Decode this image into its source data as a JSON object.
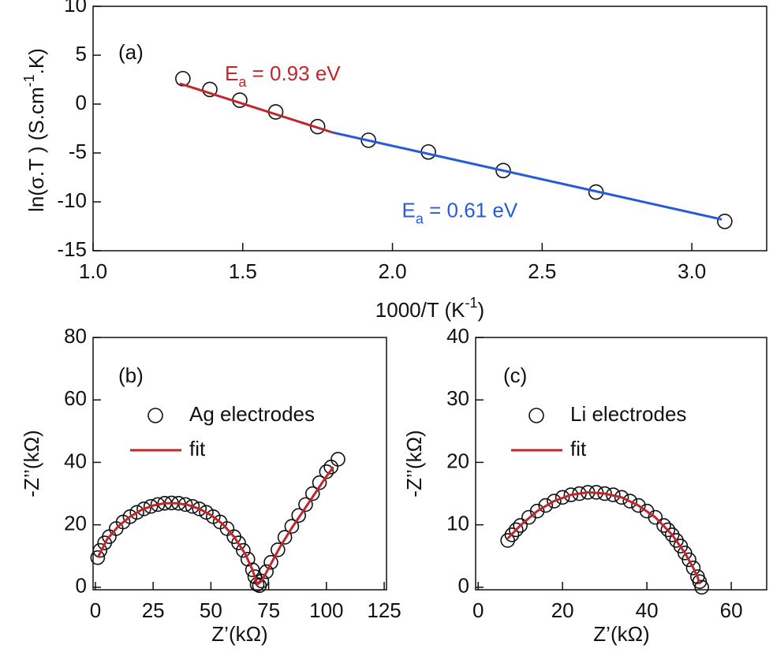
{
  "chart_data": [
    {
      "type": "scatter",
      "panel_label": "(a)",
      "x_label": {
        "text": "1000/T (K",
        "sup": "-1",
        "after": ")"
      },
      "y_label": {
        "text": "ln(σ.T ) (S.cm",
        "sup": "-1",
        "after": ".K)"
      },
      "xlim": [
        1.0,
        3.25
      ],
      "ylim": [
        -15,
        10
      ],
      "xticks": [
        {
          "value": 1,
          "label": "1.0"
        },
        1.5,
        {
          "value": 2,
          "label": "2.0"
        },
        2.5,
        {
          "value": 3,
          "label": "3.0"
        }
      ],
      "yticks": [
        -15,
        -10,
        -5,
        0,
        5,
        10
      ],
      "series": [
        {
          "style": "markers",
          "color": "#111111",
          "x": [
            1.3,
            1.39,
            1.49,
            1.61,
            1.75,
            1.92,
            2.12,
            2.37,
            2.68,
            3.11
          ],
          "values": [
            2.6,
            1.5,
            0.4,
            -0.8,
            -2.3,
            -3.7,
            -4.9,
            -6.8,
            -9.0,
            -12.0
          ]
        },
        {
          "style": "line",
          "color": "#c0272d",
          "x": [
            1.29,
            1.8
          ],
          "values": [
            2.1,
            -2.9
          ]
        },
        {
          "style": "line",
          "color": "#2a5bd7",
          "x": [
            1.8,
            3.1
          ],
          "values": [
            -2.9,
            -11.8
          ]
        }
      ],
      "annotations": [
        {
          "text": "E",
          "sub": "a",
          "after": " = 0.93 eV",
          "color": "#c0272d"
        },
        {
          "text": "E",
          "sub": "a",
          "after": " = 0.61 eV",
          "color": "#2a5bd7"
        }
      ]
    },
    {
      "type": "scatter",
      "panel_label": "(b)",
      "x_label": {
        "text": "Z’(kΩ)"
      },
      "y_label": {
        "text": "-Z’’(kΩ)"
      },
      "xlim": [
        -1,
        126
      ],
      "ylim": [
        -0.8,
        80
      ],
      "xticks": [
        0,
        25,
        50,
        75,
        100,
        125
      ],
      "yticks": [
        0,
        20,
        40,
        60,
        80
      ],
      "legend": "upper left",
      "series": [
        {
          "name": "Ag electrodes",
          "style": "markers",
          "color": "#111111",
          "x": [
            1,
            2,
            4,
            6,
            9,
            12,
            15,
            18,
            21,
            24,
            27,
            30,
            33,
            36,
            39,
            42,
            45,
            48,
            51,
            54,
            57,
            60,
            62,
            64,
            66,
            68,
            69,
            70,
            71,
            72,
            74,
            76,
            79,
            82,
            85,
            88,
            91,
            94,
            97,
            100,
            102,
            105
          ],
          "values": [
            9.5,
            11.8,
            14.2,
            16.2,
            18.8,
            20.9,
            22.6,
            24.0,
            25.1,
            25.9,
            26.5,
            26.9,
            27.0,
            26.9,
            26.5,
            25.9,
            25.1,
            24.0,
            22.6,
            20.9,
            18.8,
            16.2,
            14.2,
            11.8,
            9.0,
            5.6,
            3.4,
            0.9,
            0.5,
            2.0,
            5.0,
            8.0,
            12.0,
            16.0,
            19.5,
            23.0,
            26.5,
            30.0,
            33.5,
            37.0,
            38.5,
            41.0
          ]
        },
        {
          "name": "fit",
          "style": "line",
          "color": "#c0272d",
          "x": [
            1,
            5,
            10,
            15,
            20,
            25,
            30,
            35,
            40,
            45,
            50,
            55,
            60,
            65,
            68,
            70,
            72,
            76,
            80,
            85,
            90,
            95,
            100,
            103
          ],
          "values": [
            9.5,
            15.3,
            19.6,
            22.6,
            24.8,
            26.2,
            26.9,
            26.9,
            26.4,
            25.1,
            23.1,
            20.3,
            16.2,
            10.5,
            5.6,
            0.9,
            2.0,
            7.5,
            13.0,
            19.0,
            24.5,
            30.0,
            35.5,
            38.5
          ]
        }
      ]
    },
    {
      "type": "scatter",
      "panel_label": "(c)",
      "x_label": {
        "text": "Z’(kΩ)"
      },
      "y_label": {
        "text": "-Z’’(kΩ)"
      },
      "xlim": [
        -0.6,
        68.4
      ],
      "ylim": [
        -0.4,
        40
      ],
      "xticks": [
        0,
        20,
        40,
        60
      ],
      "yticks": [
        0,
        10,
        20,
        30,
        40
      ],
      "legend": "upper left",
      "series": [
        {
          "name": "Li electrodes",
          "style": "markers",
          "color": "#111111",
          "x": [
            7,
            8,
            9,
            10,
            12,
            14,
            16,
            18,
            20,
            22,
            24,
            26,
            28,
            30,
            32,
            34,
            36,
            38,
            40,
            42,
            44,
            45,
            46,
            47,
            48,
            49,
            50,
            51,
            52,
            52.5,
            53
          ],
          "values": [
            7.5,
            8.4,
            9.2,
            9.9,
            11.2,
            12.2,
            13.1,
            13.8,
            14.4,
            14.8,
            15.0,
            15.2,
            15.2,
            15.0,
            14.8,
            14.4,
            13.8,
            13.1,
            12.2,
            11.2,
            9.9,
            9.2,
            8.4,
            7.5,
            6.6,
            5.5,
            4.4,
            3.1,
            1.7,
            0.9,
            0.0
          ]
        },
        {
          "name": "fit",
          "style": "line",
          "color": "#c0272d",
          "x": [
            7,
            10,
            14,
            18,
            22,
            26,
            30,
            34,
            38,
            42,
            46,
            49,
            51,
            52,
            52.5
          ],
          "values": [
            7.8,
            9.9,
            12.2,
            13.8,
            14.8,
            15.2,
            15.0,
            14.4,
            13.1,
            11.2,
            8.4,
            5.5,
            3.1,
            1.7,
            0.5
          ]
        }
      ]
    }
  ]
}
